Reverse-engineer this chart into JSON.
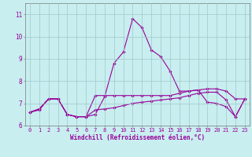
{
  "title": "",
  "xlabel": "Windchill (Refroidissement éolien,°C)",
  "background_color": "#c8eef0",
  "grid_color": "#a0c8c8",
  "line_color": "#990099",
  "x": [
    0,
    1,
    2,
    3,
    4,
    5,
    6,
    7,
    8,
    9,
    10,
    11,
    12,
    13,
    14,
    15,
    16,
    17,
    18,
    19,
    20,
    21,
    22,
    23
  ],
  "line1": [
    6.6,
    6.7,
    7.2,
    7.2,
    6.5,
    6.4,
    6.4,
    6.5,
    7.3,
    8.8,
    9.3,
    10.8,
    10.4,
    9.4,
    9.1,
    8.45,
    7.55,
    7.55,
    7.6,
    7.05,
    7.0,
    6.85,
    6.4,
    7.2
  ],
  "line2": [
    6.6,
    6.75,
    7.2,
    7.2,
    6.5,
    6.4,
    6.4,
    7.35,
    7.35,
    7.35,
    7.35,
    7.35,
    7.35,
    7.35,
    7.35,
    7.35,
    7.45,
    7.55,
    7.6,
    7.65,
    7.65,
    7.55,
    7.2,
    7.2
  ],
  "line3": [
    6.6,
    6.75,
    7.2,
    7.2,
    6.5,
    6.4,
    6.4,
    6.7,
    6.75,
    6.8,
    6.9,
    7.0,
    7.05,
    7.1,
    7.15,
    7.2,
    7.25,
    7.35,
    7.45,
    7.5,
    7.5,
    7.15,
    6.4,
    7.2
  ],
  "xlim_min": -0.5,
  "xlim_max": 23.5,
  "ylim_min": 6.0,
  "ylim_max": 11.5,
  "yticks": [
    6,
    7,
    8,
    9,
    10,
    11
  ],
  "xticks": [
    0,
    1,
    2,
    3,
    4,
    5,
    6,
    7,
    8,
    9,
    10,
    11,
    12,
    13,
    14,
    15,
    16,
    17,
    18,
    19,
    20,
    21,
    22,
    23
  ],
  "tick_fontsize": 5.0,
  "xlabel_fontsize": 5.5,
  "marker": "D",
  "markersize": 1.8,
  "linewidth": 0.8
}
